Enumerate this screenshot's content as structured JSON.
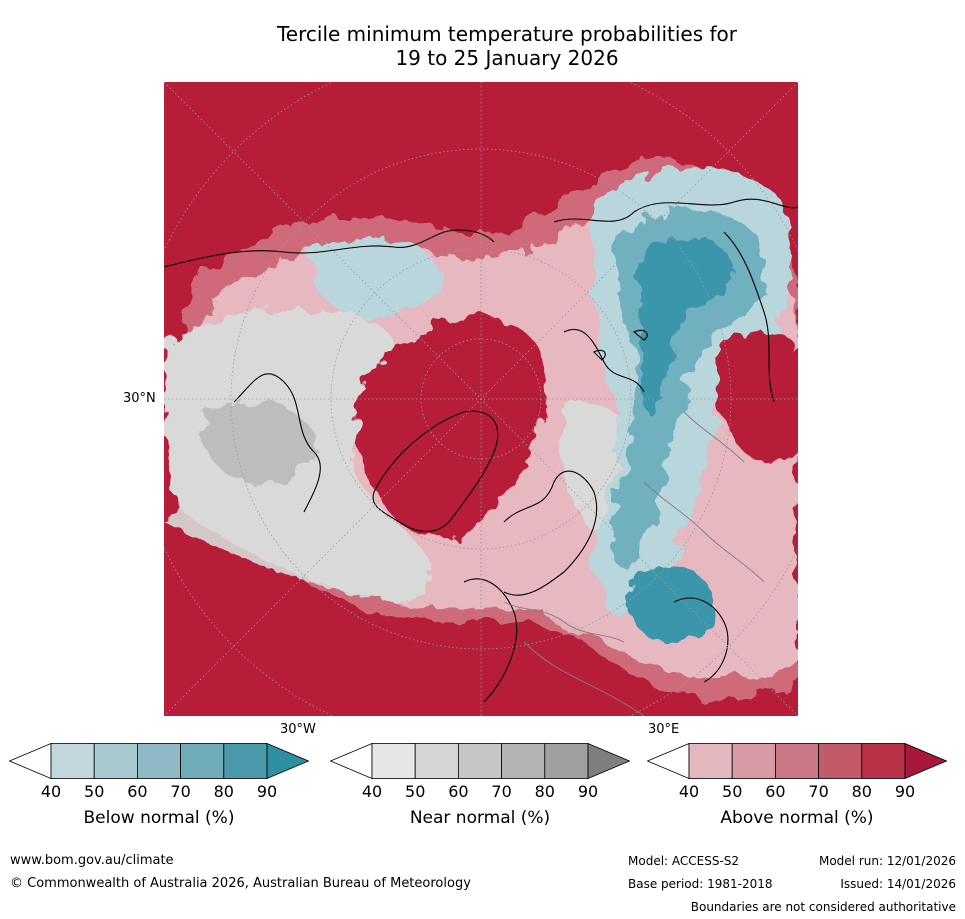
{
  "title_line1": "Tercile minimum temperature probabilities for",
  "title_line2": "19 to 25 January 2026",
  "map": {
    "lat_label": "30°N",
    "lon_label_west": "30°W",
    "lon_label_east": "30°E",
    "colors": {
      "above_strong": "#b71c38",
      "above_mid": "#cf6a7a",
      "above_light": "#e8b8c0",
      "near": "#d9d9d9",
      "near_dark": "#bdbdbd",
      "below_light": "#b9d6dd",
      "below_mid": "#6fb0bf",
      "below_strong": "#3a96ab",
      "coast": "#000000",
      "border": "#808080",
      "grid": "#999999"
    }
  },
  "colorbars": [
    {
      "label": "Below normal (%)",
      "ticks": [
        "40",
        "50",
        "60",
        "70",
        "80",
        "90"
      ],
      "colors": [
        "#ffffff",
        "#c2d8de",
        "#a9c9d1",
        "#8fbac5",
        "#6fabb8",
        "#4a9aab",
        "#2e8ea2"
      ]
    },
    {
      "label": "Near normal (%)",
      "ticks": [
        "40",
        "50",
        "60",
        "70",
        "80",
        "90"
      ],
      "colors": [
        "#ffffff",
        "#e6e6e6",
        "#d6d6d6",
        "#c6c6c6",
        "#b3b3b3",
        "#a0a0a0",
        "#7f7f7f"
      ]
    },
    {
      "label": "Above normal (%)",
      "ticks": [
        "40",
        "50",
        "60",
        "70",
        "80",
        "90"
      ],
      "colors": [
        "#ffffff",
        "#e4b8bf",
        "#d89aa4",
        "#cb7886",
        "#c25a6a",
        "#b93248",
        "#a8183a"
      ]
    }
  ],
  "footer": {
    "website": "www.bom.gov.au/climate",
    "copyright": "© Commonwealth of Australia 2026, Australian Bureau of Meteorology",
    "model": "Model: ACCESS-S2",
    "model_run": "Model run: 12/01/2026",
    "base_period": "Base period: 1981-2018",
    "issued": "Issued: 14/01/2026",
    "disclaimer": "Boundaries are not considered authoritative"
  }
}
